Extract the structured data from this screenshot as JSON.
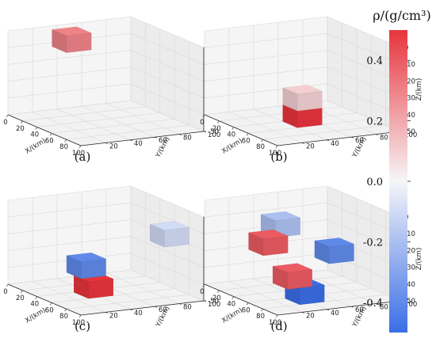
{
  "chart_data": [
    {
      "type": "3d-voxel",
      "panel_label": "(a)",
      "xlabel": "X/(km)",
      "ylabel": "Y/(km)",
      "zlabel": "Z/(km)",
      "xticks": [
        "0",
        "20",
        "40",
        "60",
        "80",
        "100"
      ],
      "yticks": [
        "20",
        "40",
        "60",
        "80",
        "100"
      ],
      "zticks": [
        "0",
        "-10",
        "-20",
        "-30",
        "-40",
        "-50"
      ],
      "xlim": [
        0,
        100
      ],
      "ylim": [
        0,
        100
      ],
      "zlim": [
        -50,
        0
      ],
      "blocks": [
        {
          "x": [
            10,
            30
          ],
          "y": [
            30,
            50
          ],
          "z": [
            -10,
            0
          ],
          "rho": 0.3
        }
      ]
    },
    {
      "type": "3d-voxel",
      "panel_label": "(b)",
      "xlabel": "X/(km)",
      "ylabel": "Y/(km)",
      "zlabel": "Z/(km)",
      "xticks": [
        "0",
        "20",
        "40",
        "60",
        "80",
        "100"
      ],
      "yticks": [
        "20",
        "40",
        "60",
        "80",
        "100"
      ],
      "zticks": [
        "0",
        "-10",
        "-20",
        "-30",
        "-40",
        "-50"
      ],
      "xlim": [
        0,
        100
      ],
      "ylim": [
        0,
        100
      ],
      "zlim": [
        -50,
        0
      ],
      "blocks": [
        {
          "x": [
            40,
            60
          ],
          "y": [
            40,
            60
          ],
          "z": [
            -40,
            -30
          ],
          "rho": 0.1
        },
        {
          "x": [
            40,
            60
          ],
          "y": [
            40,
            60
          ],
          "z": [
            -50,
            -40
          ],
          "rho": 0.5
        }
      ]
    },
    {
      "type": "3d-voxel",
      "panel_label": "(c)",
      "xlabel": "X/(km)",
      "ylabel": "Y/(km)",
      "zlabel": "Z/(km)",
      "xticks": [
        "0",
        "20",
        "40",
        "60",
        "80",
        "100"
      ],
      "yticks": [
        "20",
        "40",
        "60",
        "80",
        "100"
      ],
      "zticks": [
        "0",
        "-10",
        "-20",
        "-30",
        "-40",
        "-50"
      ],
      "xlim": [
        0,
        100
      ],
      "ylim": [
        0,
        100
      ],
      "zlim": [
        -50,
        0
      ],
      "blocks": [
        {
          "x": [
            60,
            80
          ],
          "y": [
            80,
            100
          ],
          "z": [
            -20,
            -10
          ],
          "rho": -0.1
        },
        {
          "x": [
            30,
            50
          ],
          "y": [
            30,
            50
          ],
          "z": [
            -40,
            -30
          ],
          "rho": -0.4
        },
        {
          "x": [
            40,
            60
          ],
          "y": [
            30,
            50
          ],
          "z": [
            -50,
            -40
          ],
          "rho": 0.5
        }
      ]
    },
    {
      "type": "3d-voxel",
      "panel_label": "(d)",
      "xlabel": "X/(km)",
      "ylabel": "Y/(km)",
      "zlabel": "Z/(km)",
      "xticks": [
        "0",
        "20",
        "40",
        "60",
        "80",
        "100"
      ],
      "yticks": [
        "20",
        "40",
        "60",
        "80",
        "100"
      ],
      "zticks": [
        "0",
        "-10",
        "-20",
        "-30",
        "-40",
        "-50"
      ],
      "xlim": [
        0,
        100
      ],
      "ylim": [
        0,
        100
      ],
      "zlim": [
        -50,
        0
      ],
      "blocks": [
        {
          "x": [
            10,
            30
          ],
          "y": [
            40,
            60
          ],
          "z": [
            -20,
            -10
          ],
          "rho": -0.2
        },
        {
          "x": [
            50,
            70
          ],
          "y": [
            60,
            80
          ],
          "z": [
            -30,
            -20
          ],
          "rho": -0.4
        },
        {
          "x": [
            10,
            30
          ],
          "y": [
            30,
            50
          ],
          "z": [
            -30,
            -20
          ],
          "rho": 0.4
        },
        {
          "x": [
            60,
            80
          ],
          "y": [
            20,
            40
          ],
          "z": [
            -40,
            -30
          ],
          "rho": 0.4
        },
        {
          "x": [
            60,
            80
          ],
          "y": [
            30,
            50
          ],
          "z": [
            -50,
            -40
          ],
          "rho": -0.5
        }
      ]
    }
  ],
  "colorbar": {
    "title": "ρ/(g/cm³)",
    "vmin": -0.5,
    "vmax": 0.5,
    "ticks": [
      {
        "value": 0.4,
        "label": "0.4"
      },
      {
        "value": 0.2,
        "label": "0.2"
      },
      {
        "value": 0.0,
        "label": "0.0"
      },
      {
        "value": -0.2,
        "label": "-0.2"
      },
      {
        "value": -0.4,
        "label": "-0.4"
      }
    ],
    "color_low": "#3a6ee6",
    "color_mid": "#f6f6f8",
    "color_high": "#e8343c"
  }
}
